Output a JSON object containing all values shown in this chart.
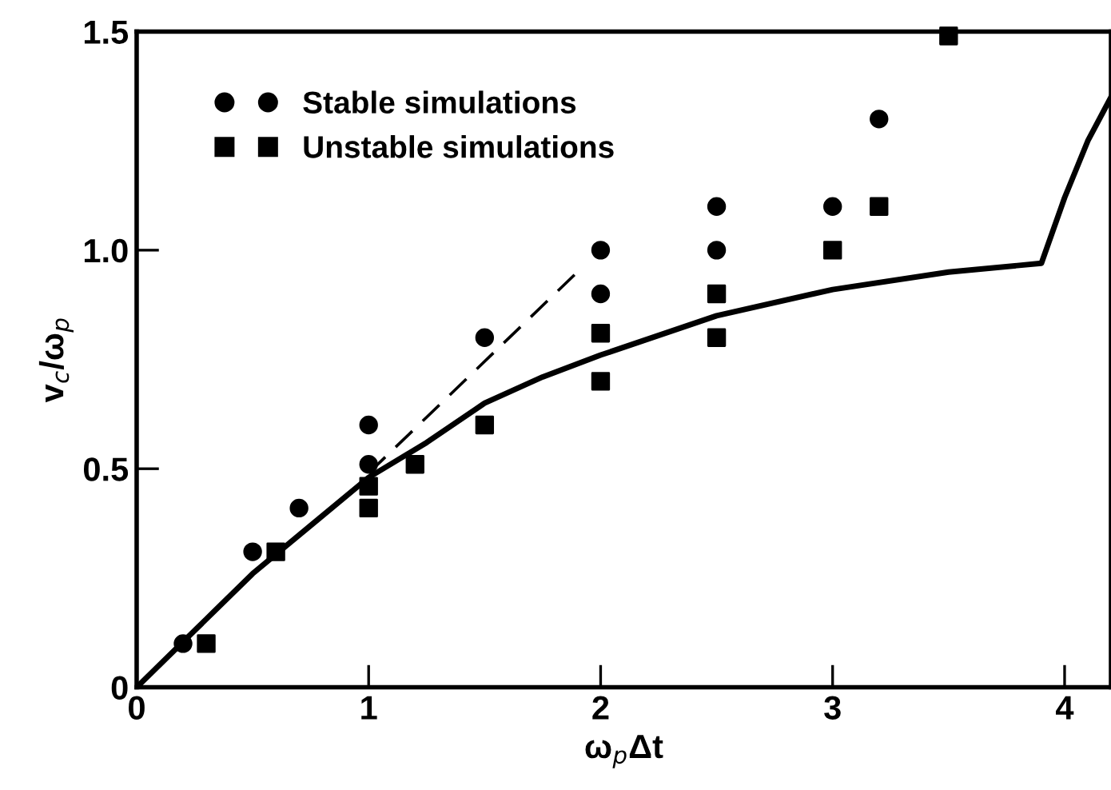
{
  "chart_data": {
    "type": "scatter",
    "xlabel": "ω$_{p}$Δt",
    "ylabel": "v$_{c}$/ω$_{p}$",
    "xlim": [
      0,
      4.2
    ],
    "ylim": [
      0,
      1.5
    ],
    "xticks": [
      0,
      1,
      2,
      3,
      4
    ],
    "yticks": [
      0,
      {
        "value": 0.5,
        "label": "0.5"
      },
      {
        "value": 1.0,
        "label": "1.0"
      },
      1.5
    ],
    "grid": false,
    "legend": "top left",
    "series": [
      {
        "name": "Stable simulations",
        "marker": "circle",
        "color": "#000000",
        "x": [
          0.2,
          0.5,
          0.7,
          1,
          1,
          1.5,
          2,
          2,
          2.5,
          2.5,
          3,
          3.2
        ],
        "values": [
          0.1,
          0.31,
          0.41,
          0.6,
          0.51,
          0.8,
          1.0,
          0.9,
          1.1,
          1.0,
          1.1,
          1.3
        ]
      },
      {
        "name": "Unstable simulations",
        "marker": "square",
        "color": "#000000",
        "x": [
          0.3,
          0.6,
          1,
          1,
          1.2,
          1.5,
          2,
          2,
          2.5,
          2.5,
          3,
          3.2,
          3.5
        ],
        "values": [
          0.1,
          0.31,
          0.46,
          0.41,
          0.51,
          0.6,
          0.81,
          0.7,
          0.9,
          0.8,
          1.0,
          1.1,
          1.49
        ]
      },
      {
        "type": "line",
        "line_style": "solid",
        "color": "#000000",
        "x": [
          0,
          0.25,
          0.5,
          0.75,
          1,
          1.25,
          1.5,
          1.75,
          2,
          2.5,
          3,
          3.5,
          3.9,
          4.0,
          4.1,
          4.2
        ],
        "values": [
          0,
          0.13,
          0.26,
          0.37,
          0.48,
          0.56,
          0.65,
          0.71,
          0.76,
          0.85,
          0.91,
          0.95,
          0.97,
          1.12,
          1.25,
          1.35
        ]
      },
      {
        "type": "line",
        "line_style": "dashed",
        "color": "#000000",
        "x": [
          1.0,
          1.9
        ],
        "values": [
          0.49,
          0.95
        ]
      }
    ]
  }
}
